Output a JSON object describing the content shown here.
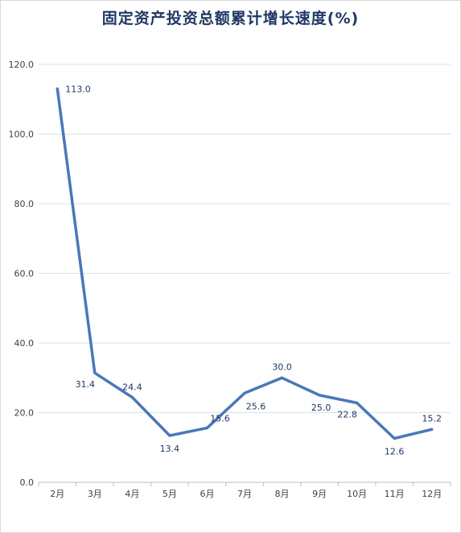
{
  "chart_data": {
    "type": "line",
    "title": "固定资产投资总额累计增长速度(%)",
    "categories": [
      "2月",
      "3月",
      "4月",
      "5月",
      "6月",
      "7月",
      "8月",
      "9月",
      "10月",
      "11月",
      "12月"
    ],
    "series": [
      {
        "values": [
          113.0,
          31.4,
          24.4,
          13.4,
          15.6,
          25.6,
          30.0,
          25.0,
          22.8,
          12.6,
          15.2
        ]
      }
    ],
    "data_labels": [
      "113.0",
      "31.4",
      "24.4",
      "13.4",
      "15.6",
      "25.6",
      "30.0",
      "25.0",
      "22.8",
      "12.6",
      "15.2"
    ],
    "y_ticks": [
      "0.0",
      "20.0",
      "40.0",
      "60.0",
      "80.0",
      "100.0",
      "120.0"
    ],
    "ylim": [
      0,
      120
    ],
    "grid": true,
    "legend": "none",
    "line_color": "#4a78b8",
    "grid_color": "#d9e2ec",
    "title_color": "#1f3864"
  }
}
